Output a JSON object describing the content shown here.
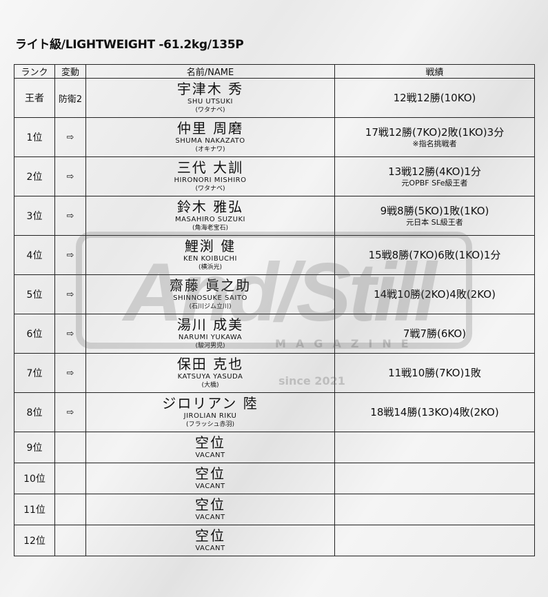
{
  "title": "ライト級/LIGHTWEIGHT -61.2kg/135P",
  "watermark": {
    "main": "And/Still",
    "sub": "MAGAZINE",
    "since": "since 2021"
  },
  "headers": [
    "ランク",
    "変動",
    "名前/NAME",
    "戦績"
  ],
  "rows": [
    {
      "rank": "王者",
      "change": "防衛2",
      "name_jp": "宇津木 秀",
      "name_en": "SHU UTSUKI",
      "gym": "(ワタナベ)",
      "record": "12戦12勝(10KO)",
      "note": ""
    },
    {
      "rank": "1位",
      "change": "⇨",
      "name_jp": "仲里 周磨",
      "name_en": "SHUMA NAKAZATO",
      "gym": "(オキナワ)",
      "record": "17戦12勝(7KO)2敗(1KO)3分",
      "note": "※指名挑戦者"
    },
    {
      "rank": "2位",
      "change": "⇨",
      "name_jp": "三代 大訓",
      "name_en": "HIRONORI MISHIRO",
      "gym": "(ワタナベ)",
      "record": "13戦12勝(4KO)1分",
      "note": "元OPBF SFe級王者"
    },
    {
      "rank": "3位",
      "change": "⇨",
      "name_jp": "鈴木 雅弘",
      "name_en": "MASAHIRO SUZUKI",
      "gym": "(角海老宝石)",
      "record": "9戦8勝(5KO)1敗(1KO)",
      "note": "元日本 SL級王者"
    },
    {
      "rank": "4位",
      "change": "⇨",
      "name_jp": "鯉渕 健",
      "name_en": "KEN KOIBUCHI",
      "gym": "(横浜光)",
      "record": "15戦8勝(7KO)6敗(1KO)1分",
      "note": ""
    },
    {
      "rank": "5位",
      "change": "⇨",
      "name_jp": "齋藤 眞之助",
      "name_en": "SHINNOSUKE SAITO",
      "gym": "(石川ジム立川)",
      "record": "14戦10勝(2KO)4敗(2KO)",
      "note": ""
    },
    {
      "rank": "6位",
      "change": "⇨",
      "name_jp": "湯川 成美",
      "name_en": "NARUMI YUKAWA",
      "gym": "(駿河男児)",
      "record": "7戦7勝(6KO)",
      "note": ""
    },
    {
      "rank": "7位",
      "change": "⇨",
      "name_jp": "保田 克也",
      "name_en": "KATSUYA YASUDA",
      "gym": "(大橋)",
      "record": "11戦10勝(7KO)1敗",
      "note": ""
    },
    {
      "rank": "8位",
      "change": "⇨",
      "name_jp": "ジロリアン 陸",
      "name_en": "JIROLIAN RIKU",
      "gym": "(フラッシュ赤羽)",
      "record": "18戦14勝(13KO)4敗(2KO)",
      "note": ""
    },
    {
      "rank": "9位",
      "change": "",
      "name_jp": "空位",
      "name_en": "VACANT",
      "gym": "",
      "record": "",
      "note": ""
    },
    {
      "rank": "10位",
      "change": "",
      "name_jp": "空位",
      "name_en": "VACANT",
      "gym": "",
      "record": "",
      "note": ""
    },
    {
      "rank": "11位",
      "change": "",
      "name_jp": "空位",
      "name_en": "VACANT",
      "gym": "",
      "record": "",
      "note": ""
    },
    {
      "rank": "12位",
      "change": "",
      "name_jp": "空位",
      "name_en": "VACANT",
      "gym": "",
      "record": "",
      "note": ""
    }
  ]
}
